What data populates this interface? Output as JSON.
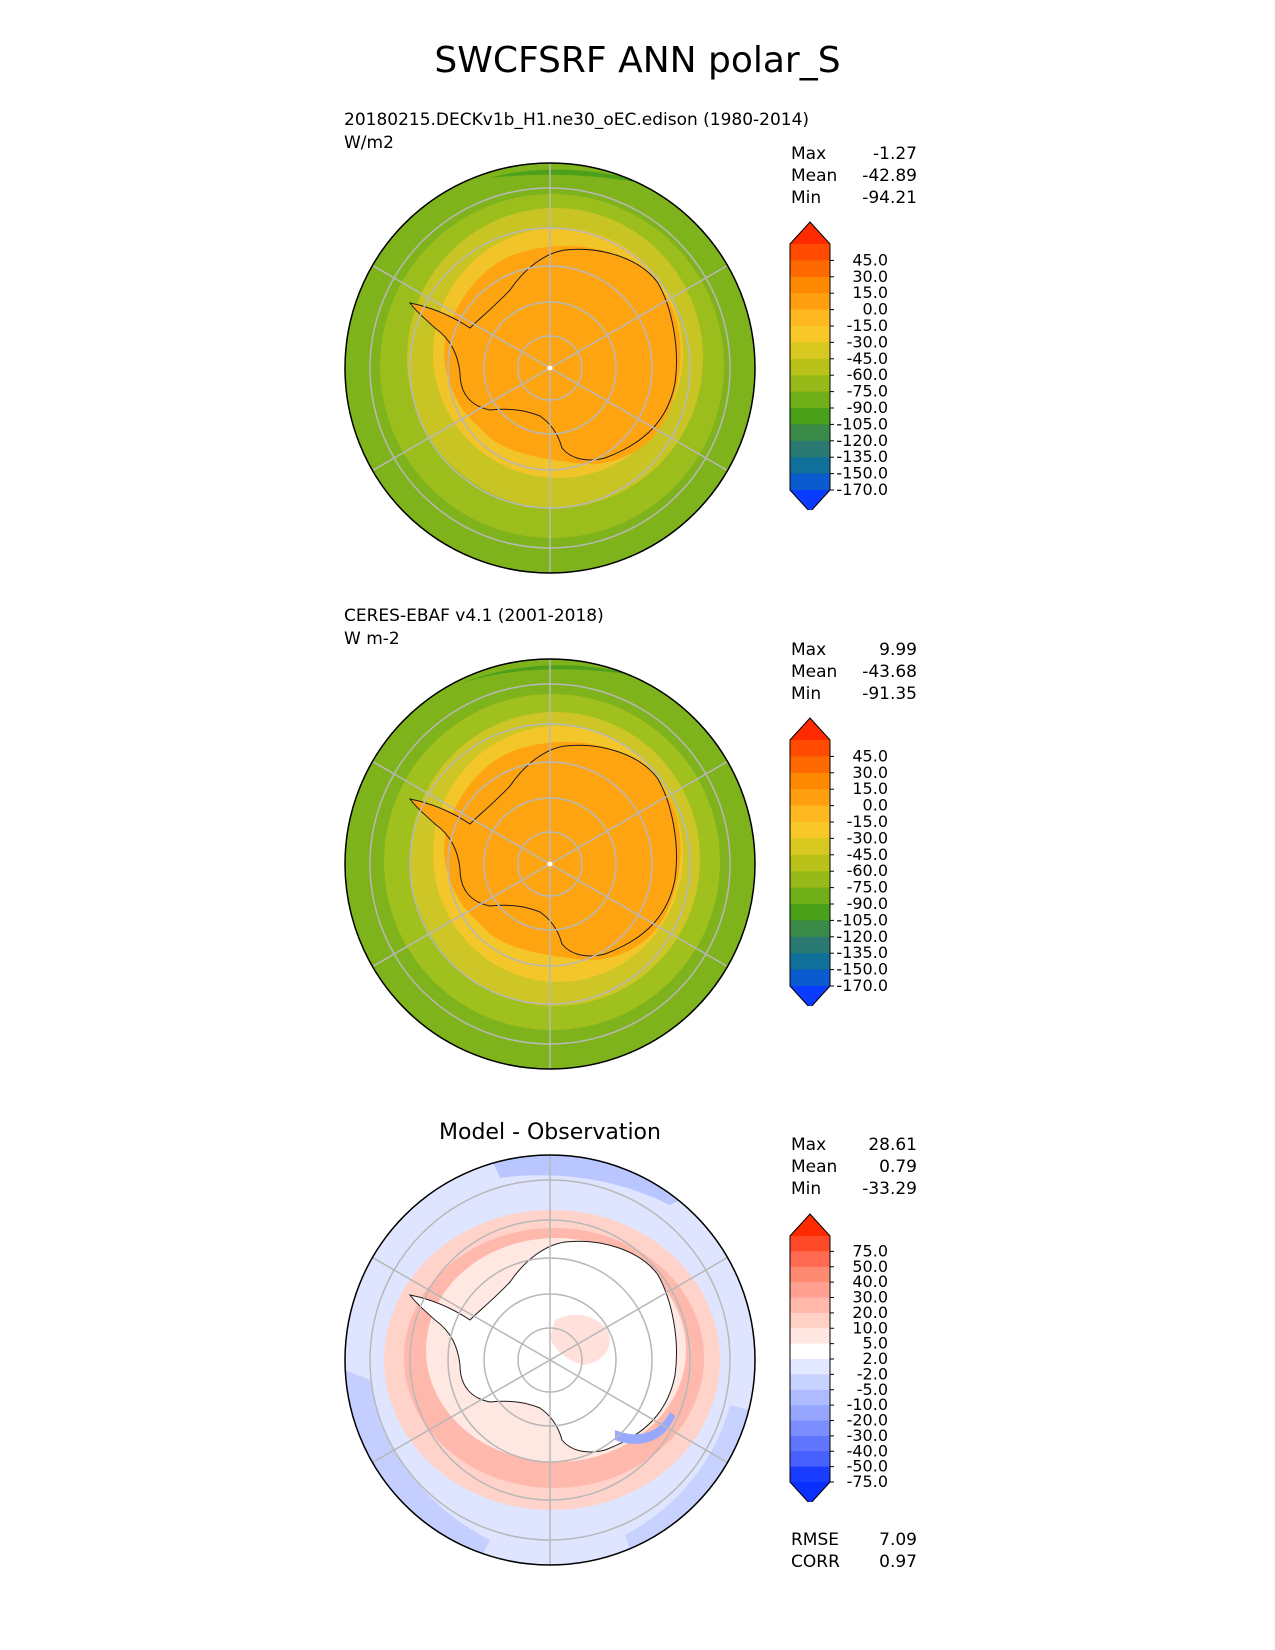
{
  "title": "SWCFSRF ANN polar_S",
  "panels": [
    {
      "id": "test",
      "title_lines": [
        "20180215.DECKv1b_H1.ne30_oEC.edison (1980-2014)",
        "W/m2"
      ],
      "stats": [
        {
          "label": "Max",
          "value": "-1.27"
        },
        {
          "label": "Mean",
          "value": "-42.89"
        },
        {
          "label": "Min",
          "value": "-94.21"
        }
      ],
      "colorbar": {
        "levels": [
          "45.0",
          "30.0",
          "15.0",
          "0.0",
          "-15.0",
          "-30.0",
          "-45.0",
          "-60.0",
          "-75.0",
          "-90.0",
          "-105.0",
          "-120.0",
          "-135.0",
          "-150.0",
          "-170.0"
        ],
        "colors": [
          "#ff2a00",
          "#ff4a00",
          "#ff6a00",
          "#ff8a00",
          "#ffa010",
          "#ffb820",
          "#f8c829",
          "#d8c820",
          "#b8c218",
          "#98ba18",
          "#6fb018",
          "#4aa018",
          "#3a8a48",
          "#2a7a72",
          "#10709a",
          "#0a5ad0",
          "#0a3cff"
        ]
      }
    },
    {
      "id": "reference",
      "title_lines": [
        "CERES-EBAF v4.1 (2001-2018)",
        "W m-2"
      ],
      "stats": [
        {
          "label": "Max",
          "value": "9.99"
        },
        {
          "label": "Mean",
          "value": "-43.68"
        },
        {
          "label": "Min",
          "value": "-91.35"
        }
      ],
      "colorbar": {
        "levels": [
          "45.0",
          "30.0",
          "15.0",
          "0.0",
          "-15.0",
          "-30.0",
          "-45.0",
          "-60.0",
          "-75.0",
          "-90.0",
          "-105.0",
          "-120.0",
          "-135.0",
          "-150.0",
          "-170.0"
        ],
        "colors": [
          "#ff2a00",
          "#ff4a00",
          "#ff6a00",
          "#ff8a00",
          "#ffa010",
          "#ffb820",
          "#f8c829",
          "#d8c820",
          "#b8c218",
          "#98ba18",
          "#6fb018",
          "#4aa018",
          "#3a8a48",
          "#2a7a72",
          "#10709a",
          "#0a5ad0",
          "#0a3cff"
        ]
      }
    },
    {
      "id": "difference",
      "title_lines": [
        "Model - Observation"
      ],
      "stats": [
        {
          "label": "Max",
          "value": "28.61"
        },
        {
          "label": "Mean",
          "value": "0.79"
        },
        {
          "label": "Min",
          "value": "-33.29"
        }
      ],
      "extra_stats": [
        {
          "label": "RMSE",
          "value": "7.09"
        },
        {
          "label": "CORR",
          "value": "0.97"
        }
      ],
      "colorbar": {
        "levels": [
          "75.0",
          "50.0",
          "40.0",
          "30.0",
          "20.0",
          "10.0",
          "5.0",
          "2.0",
          "-2.0",
          "-5.0",
          "-10.0",
          "-20.0",
          "-30.0",
          "-40.0",
          "-50.0",
          "-75.0"
        ],
        "colors": [
          "#ff2a00",
          "#ff4a2a",
          "#ff6a50",
          "#ff8a72",
          "#ffa092",
          "#ffb8aa",
          "#ffd0c6",
          "#ffe6e0",
          "#ffffff",
          "#e2e8ff",
          "#c8d2ff",
          "#aebcff",
          "#96a6ff",
          "#7c8eff",
          "#6076ff",
          "#4860ff",
          "#1a3cff",
          "#0a30ff"
        ]
      }
    }
  ],
  "chart_data": [
    {
      "type": "heatmap",
      "projection": "south polar stereographic",
      "title": "20180215.DECKv1b_H1.ne30_oEC.edison (1980-2014)",
      "units": "W/m2",
      "stats": {
        "max": -1.27,
        "mean": -42.89,
        "min": -94.21
      },
      "levels": [
        -170,
        -150,
        -135,
        -120,
        -105,
        -90,
        -75,
        -60,
        -45,
        -30,
        -15,
        0,
        15,
        30,
        45
      ],
      "colorbar_extend": "both"
    },
    {
      "type": "heatmap",
      "projection": "south polar stereographic",
      "title": "CERES-EBAF v4.1 (2001-2018)",
      "units": "W m-2",
      "stats": {
        "max": 9.99,
        "mean": -43.68,
        "min": -91.35
      },
      "levels": [
        -170,
        -150,
        -135,
        -120,
        -105,
        -90,
        -75,
        -60,
        -45,
        -30,
        -15,
        0,
        15,
        30,
        45
      ],
      "colorbar_extend": "both"
    },
    {
      "type": "heatmap",
      "projection": "south polar stereographic",
      "title": "Model - Observation",
      "stats": {
        "max": 28.61,
        "mean": 0.79,
        "min": -33.29,
        "rmse": 7.09,
        "corr": 0.97
      },
      "levels": [
        -75,
        -50,
        -40,
        -30,
        -20,
        -10,
        -5,
        -2,
        2,
        5,
        10,
        20,
        30,
        40,
        50,
        75
      ],
      "colorbar_extend": "both"
    }
  ]
}
